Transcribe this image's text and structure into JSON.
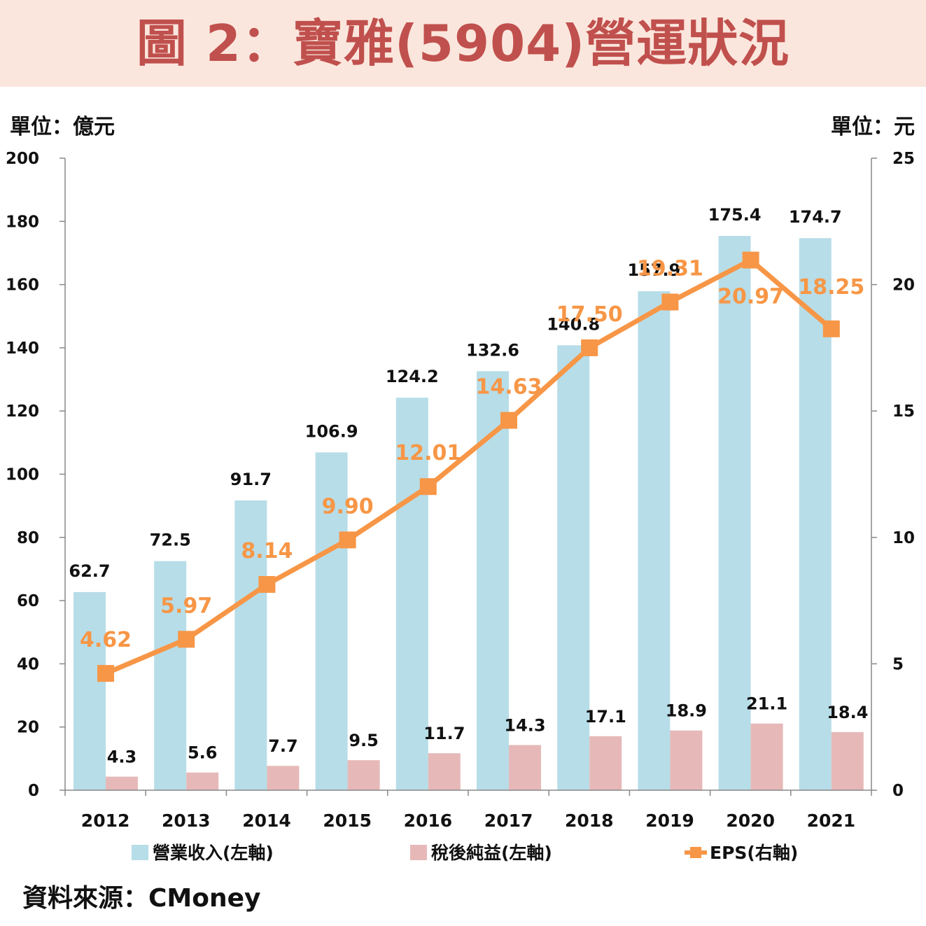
{
  "title": "圖 2：寶雅(5904)營運狀況",
  "left_unit": "單位：億元",
  "right_unit": "單位：元",
  "source": "資料來源：CMoney",
  "chart_data": {
    "type": "bar",
    "categories": [
      "2012",
      "2013",
      "2014",
      "2015",
      "2016",
      "2017",
      "2018",
      "2019",
      "2020",
      "2021"
    ],
    "series": [
      {
        "name": "營業收入(左軸)",
        "kind": "bar",
        "axis": "left",
        "color": "#b7dde8",
        "values": [
          62.7,
          72.5,
          91.7,
          106.9,
          124.2,
          132.6,
          140.8,
          157.9,
          175.4,
          174.7
        ],
        "labels": [
          "62.7",
          "72.5",
          "91.7",
          "106.9",
          "124.2",
          "132.6",
          "140.8",
          "157.9",
          "175.4",
          "174.7"
        ]
      },
      {
        "name": "稅後純益(左軸)",
        "kind": "bar",
        "axis": "left",
        "color": "#e6b9b8",
        "values": [
          4.3,
          5.6,
          7.7,
          9.5,
          11.7,
          14.3,
          17.1,
          18.9,
          21.1,
          18.4
        ],
        "labels": [
          "4.3",
          "5.6",
          "7.7",
          "9.5",
          "11.7",
          "14.3",
          "17.1",
          "18.9",
          "21.1",
          "18.4"
        ]
      },
      {
        "name": "EPS(右軸)",
        "kind": "line",
        "axis": "right",
        "color": "#f79646",
        "values": [
          4.62,
          5.97,
          8.14,
          9.9,
          12.01,
          14.63,
          17.5,
          19.31,
          20.97,
          18.25
        ],
        "labels": [
          "4.62",
          "5.97",
          "8.14",
          "9.90",
          "12.01",
          "14.63",
          "17.50",
          "19.31",
          "20.97",
          "18.25"
        ]
      }
    ],
    "y_left": {
      "range": [
        0,
        200
      ],
      "ticks": [
        "0",
        "20",
        "40",
        "60",
        "80",
        "100",
        "120",
        "140",
        "160",
        "180",
        "200"
      ]
    },
    "y_right": {
      "range": [
        0,
        25
      ],
      "ticks": [
        "0",
        "5",
        "10",
        "15",
        "20",
        "25"
      ]
    },
    "legend": "bottom",
    "grid": false
  }
}
